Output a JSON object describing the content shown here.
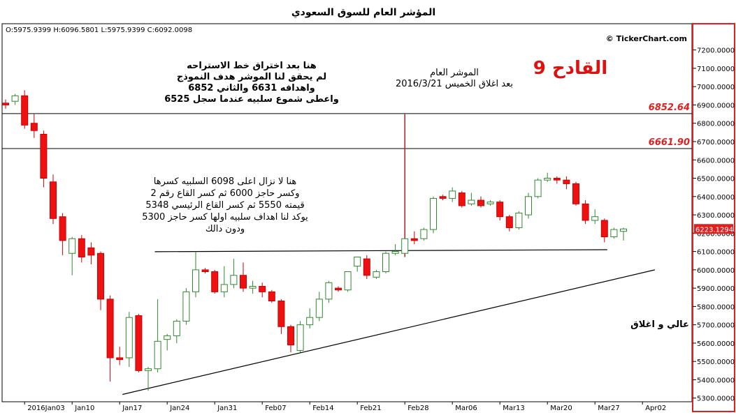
{
  "chart_data": {
    "type": "candlestick",
    "title": "المؤشر العام للسوق السعودي",
    "ohlc_readout": "O:5975.9399  H:6096.5801  L:5975.9399  C:6092.0098",
    "watermark": "© TickerChart.com",
    "headline": "القادح 9",
    "chart_type_label": "عالي و اغلاق",
    "last_price_label": "6223.1294",
    "last_price": 6223.13,
    "ylim": [
      5280,
      7290
    ],
    "y_ticks": [
      5300,
      5400,
      5500,
      5600,
      5700,
      5800,
      5900,
      6000,
      6100,
      6200,
      6300,
      6400,
      6500,
      6600,
      6700,
      6800,
      6900,
      7000,
      7100,
      7200
    ],
    "y_tick_labels": [
      "5300.0000",
      "5400.0000",
      "5500.0000",
      "5600.0000",
      "5700.0000",
      "5800.0000",
      "5900.0000",
      "6000.0000",
      "6100.0000",
      "6200.0000",
      "6300.0000",
      "6400.0000",
      "6500.0000",
      "6600.0000",
      "6700.0000",
      "6800.0000",
      "6900.0000",
      "7000.0000",
      "7100.0000",
      "7200.0000"
    ],
    "x_labels": [
      {
        "label": "2016Jan03",
        "bar": 2.0
      },
      {
        "label": "Jan10",
        "bar": 7.0
      },
      {
        "label": "Jan17",
        "bar": 12.0
      },
      {
        "label": "Jan24",
        "bar": 17.0
      },
      {
        "label": "Jan31",
        "bar": 22.0
      },
      {
        "label": "Feb07",
        "bar": 27.0
      },
      {
        "label": "Feb14",
        "bar": 32.0
      },
      {
        "label": "Feb21",
        "bar": 37.0
      },
      {
        "label": "Feb28",
        "bar": 42.0
      },
      {
        "label": "Mar06",
        "bar": 47.0
      },
      {
        "label": "Mar13",
        "bar": 52.0
      },
      {
        "label": "Mar20",
        "bar": 57.0
      },
      {
        "label": "Mar27",
        "bar": 62.0
      },
      {
        "label": "Apr02",
        "bar": 67.0
      }
    ],
    "levels": [
      {
        "label": "6852.64",
        "value": 6852.64,
        "color": "#e02020"
      },
      {
        "label": "6661.90",
        "value": 6661.9,
        "color": "#e02020"
      }
    ],
    "candles": [
      {
        "o": 6910,
        "h": 6930,
        "l": 6880,
        "c": 6900
      },
      {
        "o": 6920,
        "h": 6960,
        "l": 6900,
        "c": 6950
      },
      {
        "o": 6950,
        "h": 6980,
        "l": 6770,
        "c": 6790
      },
      {
        "o": 6800,
        "h": 6850,
        "l": 6720,
        "c": 6760
      },
      {
        "o": 6740,
        "h": 6760,
        "l": 6450,
        "c": 6500
      },
      {
        "o": 6480,
        "h": 6520,
        "l": 6250,
        "c": 6280
      },
      {
        "o": 6290,
        "h": 6310,
        "l": 6080,
        "c": 6160
      },
      {
        "o": 6090,
        "h": 6180,
        "l": 5970,
        "c": 6170
      },
      {
        "o": 6170,
        "h": 6190,
        "l": 6040,
        "c": 6070
      },
      {
        "o": 6120,
        "h": 6150,
        "l": 6030,
        "c": 6080
      },
      {
        "o": 6090,
        "h": 6100,
        "l": 5780,
        "c": 5840
      },
      {
        "o": 5840,
        "h": 5860,
        "l": 5390,
        "c": 5520
      },
      {
        "o": 5520,
        "h": 5580,
        "l": 5480,
        "c": 5510
      },
      {
        "o": 5520,
        "h": 5770,
        "l": 5470,
        "c": 5740
      },
      {
        "o": 5750,
        "h": 5760,
        "l": 5440,
        "c": 5450
      },
      {
        "o": 5450,
        "h": 5470,
        "l": 5340,
        "c": 5460
      },
      {
        "o": 5460,
        "h": 5840,
        "l": 5440,
        "c": 5610
      },
      {
        "o": 5620,
        "h": 5650,
        "l": 5560,
        "c": 5640
      },
      {
        "o": 5640,
        "h": 5730,
        "l": 5600,
        "c": 5720
      },
      {
        "o": 5720,
        "h": 5900,
        "l": 5700,
        "c": 5880
      },
      {
        "o": 5880,
        "h": 6100,
        "l": 5850,
        "c": 6000
      },
      {
        "o": 6000,
        "h": 6010,
        "l": 5980,
        "c": 5990
      },
      {
        "o": 5990,
        "h": 6000,
        "l": 5870,
        "c": 5880
      },
      {
        "o": 5880,
        "h": 6020,
        "l": 5850,
        "c": 5920
      },
      {
        "o": 5920,
        "h": 6060,
        "l": 5900,
        "c": 5970
      },
      {
        "o": 5970,
        "h": 6040,
        "l": 5880,
        "c": 5900
      },
      {
        "o": 5900,
        "h": 5940,
        "l": 5870,
        "c": 5910
      },
      {
        "o": 5910,
        "h": 5930,
        "l": 5850,
        "c": 5880
      },
      {
        "o": 5880,
        "h": 5890,
        "l": 5820,
        "c": 5830
      },
      {
        "o": 5830,
        "h": 5840,
        "l": 5650,
        "c": 5690
      },
      {
        "o": 5690,
        "h": 5700,
        "l": 5550,
        "c": 5590
      },
      {
        "o": 5560,
        "h": 5720,
        "l": 5550,
        "c": 5700
      },
      {
        "o": 5700,
        "h": 5790,
        "l": 5680,
        "c": 5740
      },
      {
        "o": 5740,
        "h": 5880,
        "l": 5720,
        "c": 5840
      },
      {
        "o": 5840,
        "h": 5940,
        "l": 5820,
        "c": 5930
      },
      {
        "o": 5900,
        "h": 5910,
        "l": 5880,
        "c": 5890
      },
      {
        "o": 5890,
        "h": 5990,
        "l": 5880,
        "c": 5990
      },
      {
        "o": 6020,
        "h": 6060,
        "l": 5990,
        "c": 6070
      },
      {
        "o": 6060,
        "h": 6080,
        "l": 5950,
        "c": 5970
      },
      {
        "o": 5960,
        "h": 6000,
        "l": 5950,
        "c": 5990
      },
      {
        "o": 5990,
        "h": 6100,
        "l": 5980,
        "c": 6090
      },
      {
        "o": 6090,
        "h": 6140,
        "l": 6080,
        "c": 6100
      },
      {
        "o": 6090,
        "h": 6850,
        "l": 6070,
        "c": 6170
      },
      {
        "o": 6170,
        "h": 6210,
        "l": 6140,
        "c": 6160
      },
      {
        "o": 6170,
        "h": 6230,
        "l": 6160,
        "c": 6220
      },
      {
        "o": 6220,
        "h": 6400,
        "l": 6200,
        "c": 6390
      },
      {
        "o": 6400,
        "h": 6410,
        "l": 6380,
        "c": 6390
      },
      {
        "o": 6390,
        "h": 6450,
        "l": 6370,
        "c": 6430
      },
      {
        "o": 6420,
        "h": 6430,
        "l": 6340,
        "c": 6350
      },
      {
        "o": 6360,
        "h": 6420,
        "l": 6350,
        "c": 6380
      },
      {
        "o": 6380,
        "h": 6400,
        "l": 6340,
        "c": 6350
      },
      {
        "o": 6360,
        "h": 6380,
        "l": 6350,
        "c": 6370
      },
      {
        "o": 6370,
        "h": 6380,
        "l": 6270,
        "c": 6290
      },
      {
        "o": 6290,
        "h": 6300,
        "l": 6210,
        "c": 6230
      },
      {
        "o": 6230,
        "h": 6320,
        "l": 6220,
        "c": 6310
      },
      {
        "o": 6300,
        "h": 6420,
        "l": 6280,
        "c": 6400
      },
      {
        "o": 6400,
        "h": 6500,
        "l": 6390,
        "c": 6490
      },
      {
        "o": 6490,
        "h": 6530,
        "l": 6480,
        "c": 6500
      },
      {
        "o": 6500,
        "h": 6510,
        "l": 6470,
        "c": 6490
      },
      {
        "o": 6490,
        "h": 6510,
        "l": 6440,
        "c": 6470
      },
      {
        "o": 6470,
        "h": 6480,
        "l": 6350,
        "c": 6360
      },
      {
        "o": 6360,
        "h": 6380,
        "l": 6250,
        "c": 6270
      },
      {
        "o": 6270,
        "h": 6330,
        "l": 6250,
        "c": 6290
      },
      {
        "o": 6270,
        "h": 6280,
        "l": 6150,
        "c": 6180
      },
      {
        "o": 6180,
        "h": 6230,
        "l": 6170,
        "c": 6220
      },
      {
        "o": 6210,
        "h": 6230,
        "l": 6160,
        "c": 6223.13
      }
    ],
    "annotations": [
      {
        "id": "note-resistance",
        "color": "#000000",
        "lines": [
          "هنا بعد اختراق خط الاستراحه",
          "لم يحقق لنا الموشر هدف النموذج",
          "واهدافه 6631  والثاني  6852",
          "واعطى شموع سلبيه عندما سجل 6525"
        ]
      },
      {
        "id": "note-date",
        "color": "#000000",
        "lines": [
          "الموشر العام",
          "بعد اغلاق الخميس 2016/3/21"
        ]
      },
      {
        "id": "note-support",
        "color": "#000000",
        "lines": [
          "هنا لا نزال اعلى 6098 السلبيه كسرها",
          "وكسر حاجز 6000 ثم كسر القاع رقم 2",
          "قيمته 5550 ثم كسر القاع الرئيسي 5348",
          "يوكد لنا اهداف سلبيه اولها كسر حاجز 5300",
          "ودون دالك"
        ]
      }
    ],
    "lines": [
      {
        "id": "horizontal-neckline",
        "points": [
          [
            15.7,
            6099
          ],
          [
            63.3,
            6110
          ]
        ],
        "color": "#000000"
      },
      {
        "id": "ascending-trendline",
        "points": [
          [
            12.3,
            5320
          ],
          [
            68.3,
            6000
          ]
        ],
        "color": "#000000"
      }
    ],
    "colors": {
      "up": "#ffffff",
      "up_border": "#2f8a2f",
      "down": "#ee1111",
      "down_border": "#cc0000",
      "axis_border": "#e02020",
      "spike": "#b22222"
    }
  }
}
